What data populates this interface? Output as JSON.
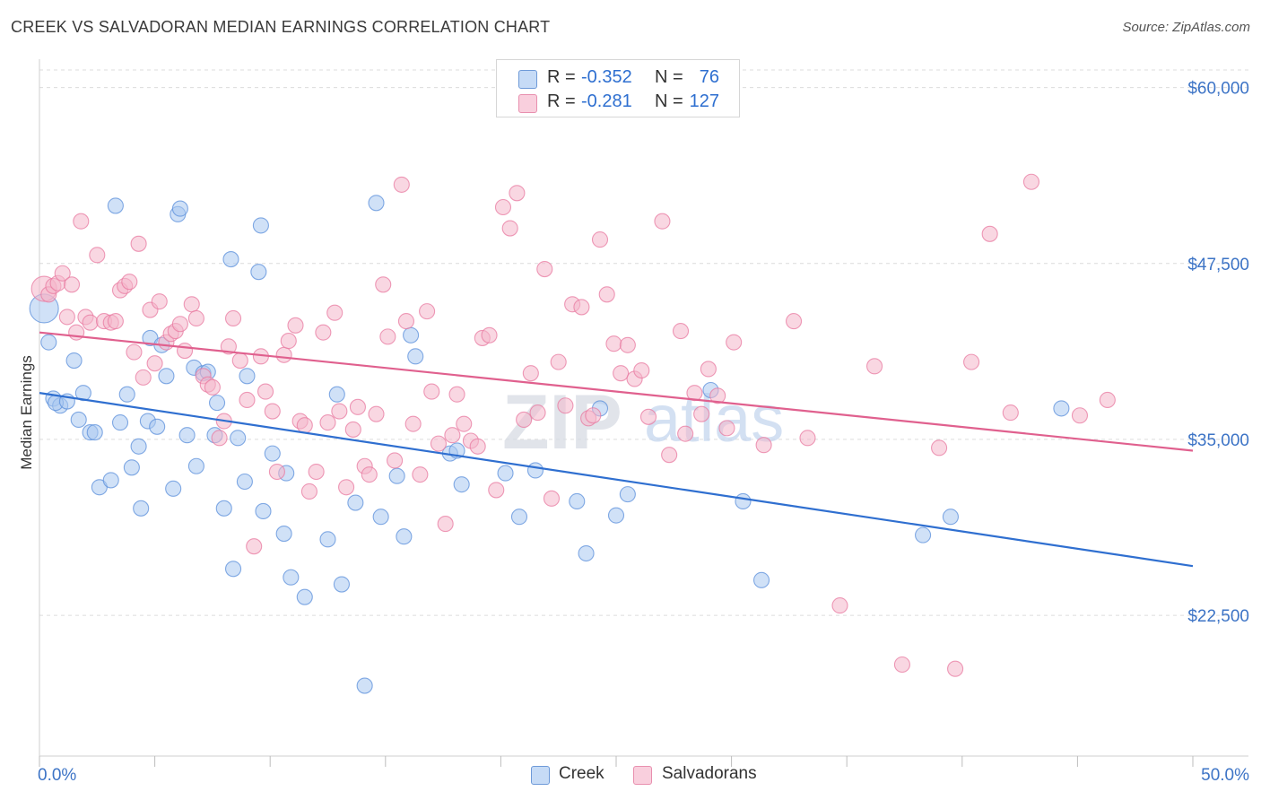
{
  "header": {
    "title": "CREEK VS SALVADORAN MEDIAN EARNINGS CORRELATION CHART",
    "source": "Source: ZipAtlas.com"
  },
  "legend_top": {
    "rows": [
      {
        "r_label": "R =",
        "r_value": "-0.352",
        "n_label": "N =",
        "n_value": "76",
        "color": "#a9c8f0"
      },
      {
        "r_label": "R =",
        "r_value": "-0.281",
        "n_label": "N =",
        "n_value": "127",
        "color": "#f4b6cb"
      }
    ]
  },
  "legend_bottom": [
    {
      "label": "Creek",
      "color": "#a9c8f0"
    },
    {
      "label": "Salvadorans",
      "color": "#f4b6cb"
    }
  ],
  "watermark": {
    "zip": "ZIP",
    "atlas": "atlas"
  },
  "chart_data": {
    "type": "scatter",
    "title": "CREEK VS SALVADORAN MEDIAN EARNINGS CORRELATION CHART",
    "ylabel": "Median Earnings",
    "xlim": [
      0,
      50
    ],
    "ylim": [
      12500,
      61250
    ],
    "x_tick_labels": [
      "0.0%",
      "50.0%"
    ],
    "y_ticks": [
      22500,
      35000,
      47500,
      60000
    ],
    "y_tick_labels": [
      "$22,500",
      "$35,000",
      "$47,500",
      "$60,000"
    ],
    "grid": true,
    "series": [
      {
        "name": "Creek",
        "color": "#5b8fdb",
        "fill": "#a9c8f0",
        "trend": {
          "x": [
            0,
            50
          ],
          "y": [
            38300,
            26000
          ]
        },
        "points": [
          [
            0.2,
            44300
          ],
          [
            0.4,
            41900
          ],
          [
            0.6,
            37900
          ],
          [
            0.9,
            37400
          ],
          [
            0.7,
            37600
          ],
          [
            1.2,
            37700
          ],
          [
            1.5,
            40600
          ],
          [
            1.7,
            36400
          ],
          [
            1.9,
            38300
          ],
          [
            2.2,
            35500
          ],
          [
            2.4,
            35500
          ],
          [
            2.6,
            31600
          ],
          [
            3.1,
            32100
          ],
          [
            3.3,
            51600
          ],
          [
            3.5,
            36200
          ],
          [
            3.8,
            38200
          ],
          [
            4.0,
            33000
          ],
          [
            4.3,
            34500
          ],
          [
            4.4,
            30100
          ],
          [
            4.7,
            36300
          ],
          [
            4.8,
            42200
          ],
          [
            5.1,
            35900
          ],
          [
            5.3,
            41700
          ],
          [
            5.5,
            39500
          ],
          [
            5.8,
            31500
          ],
          [
            6.0,
            51000
          ],
          [
            6.1,
            51400
          ],
          [
            6.4,
            35300
          ],
          [
            6.7,
            40100
          ],
          [
            6.8,
            33100
          ],
          [
            7.1,
            39700
          ],
          [
            7.3,
            39800
          ],
          [
            7.6,
            35300
          ],
          [
            7.7,
            37600
          ],
          [
            8.0,
            30100
          ],
          [
            8.3,
            47800
          ],
          [
            8.4,
            25800
          ],
          [
            8.6,
            35100
          ],
          [
            8.9,
            32000
          ],
          [
            9.0,
            39500
          ],
          [
            9.5,
            46900
          ],
          [
            9.6,
            50200
          ],
          [
            10.1,
            34000
          ],
          [
            10.6,
            28300
          ],
          [
            10.7,
            32600
          ],
          [
            10.9,
            25200
          ],
          [
            11.5,
            23800
          ],
          [
            12.5,
            27900
          ],
          [
            12.9,
            38200
          ],
          [
            13.1,
            24700
          ],
          [
            13.7,
            30500
          ],
          [
            14.1,
            17500
          ],
          [
            14.6,
            51800
          ],
          [
            14.8,
            29500
          ],
          [
            15.5,
            32400
          ],
          [
            15.8,
            28100
          ],
          [
            16.1,
            42400
          ],
          [
            16.3,
            40900
          ],
          [
            17.8,
            34000
          ],
          [
            18.1,
            34200
          ],
          [
            18.3,
            31800
          ],
          [
            20.2,
            32600
          ],
          [
            20.8,
            29500
          ],
          [
            21.5,
            32800
          ],
          [
            23.3,
            30600
          ],
          [
            23.7,
            26900
          ],
          [
            24.3,
            37200
          ],
          [
            25.0,
            29600
          ],
          [
            25.5,
            31100
          ],
          [
            29.1,
            38500
          ],
          [
            30.5,
            30600
          ],
          [
            31.3,
            25000
          ],
          [
            38.3,
            28200
          ],
          [
            39.5,
            29500
          ],
          [
            44.3,
            37200
          ],
          [
            9.7,
            29900
          ]
        ]
      },
      {
        "name": "Salvadorans",
        "color": "#e87aa0",
        "fill": "#f4b6cb",
        "trend": {
          "x": [
            0,
            50
          ],
          "y": [
            42600,
            34200
          ]
        },
        "points": [
          [
            0.2,
            45700
          ],
          [
            0.4,
            45300
          ],
          [
            0.6,
            45900
          ],
          [
            0.8,
            46100
          ],
          [
            1.0,
            46800
          ],
          [
            1.2,
            43700
          ],
          [
            1.4,
            46000
          ],
          [
            1.6,
            42600
          ],
          [
            1.8,
            50500
          ],
          [
            2.0,
            43700
          ],
          [
            2.2,
            43300
          ],
          [
            2.5,
            48100
          ],
          [
            2.8,
            43400
          ],
          [
            3.1,
            43300
          ],
          [
            3.3,
            43400
          ],
          [
            3.5,
            45600
          ],
          [
            3.7,
            45900
          ],
          [
            3.9,
            46200
          ],
          [
            4.1,
            41200
          ],
          [
            4.3,
            48900
          ],
          [
            4.5,
            39400
          ],
          [
            4.8,
            44200
          ],
          [
            5.0,
            40400
          ],
          [
            5.2,
            44800
          ],
          [
            5.5,
            41900
          ],
          [
            5.7,
            42500
          ],
          [
            5.9,
            42700
          ],
          [
            6.1,
            43200
          ],
          [
            6.3,
            41300
          ],
          [
            6.6,
            44600
          ],
          [
            6.8,
            43600
          ],
          [
            7.1,
            39500
          ],
          [
            7.3,
            38900
          ],
          [
            7.5,
            38700
          ],
          [
            7.8,
            35100
          ],
          [
            8.0,
            36300
          ],
          [
            8.2,
            41600
          ],
          [
            8.4,
            43600
          ],
          [
            8.7,
            40600
          ],
          [
            9.0,
            37800
          ],
          [
            9.3,
            27400
          ],
          [
            9.6,
            40900
          ],
          [
            9.8,
            38400
          ],
          [
            10.1,
            37000
          ],
          [
            10.3,
            32700
          ],
          [
            10.6,
            41000
          ],
          [
            10.8,
            42000
          ],
          [
            11.1,
            43100
          ],
          [
            11.3,
            36300
          ],
          [
            11.5,
            36000
          ],
          [
            11.7,
            31300
          ],
          [
            12.0,
            32700
          ],
          [
            12.3,
            42600
          ],
          [
            12.5,
            36200
          ],
          [
            12.8,
            44000
          ],
          [
            13.0,
            37000
          ],
          [
            13.3,
            31600
          ],
          [
            13.6,
            35700
          ],
          [
            13.8,
            37300
          ],
          [
            14.1,
            33100
          ],
          [
            14.3,
            32500
          ],
          [
            14.6,
            36800
          ],
          [
            14.9,
            46000
          ],
          [
            15.1,
            42300
          ],
          [
            15.4,
            33500
          ],
          [
            15.7,
            53100
          ],
          [
            15.9,
            43400
          ],
          [
            16.2,
            36100
          ],
          [
            16.5,
            32500
          ],
          [
            16.8,
            44100
          ],
          [
            17.0,
            38400
          ],
          [
            17.3,
            34700
          ],
          [
            17.6,
            29000
          ],
          [
            17.9,
            35300
          ],
          [
            18.1,
            38200
          ],
          [
            18.4,
            36100
          ],
          [
            18.7,
            34900
          ],
          [
            19.0,
            34500
          ],
          [
            19.2,
            42200
          ],
          [
            19.5,
            42400
          ],
          [
            19.8,
            31400
          ],
          [
            20.1,
            51500
          ],
          [
            20.4,
            50000
          ],
          [
            20.7,
            52500
          ],
          [
            21.0,
            36400
          ],
          [
            21.3,
            39700
          ],
          [
            21.6,
            36900
          ],
          [
            21.9,
            47100
          ],
          [
            22.2,
            30800
          ],
          [
            22.5,
            40500
          ],
          [
            22.8,
            37400
          ],
          [
            23.1,
            44600
          ],
          [
            23.5,
            44400
          ],
          [
            23.8,
            36500
          ],
          [
            24.0,
            36700
          ],
          [
            24.3,
            49200
          ],
          [
            24.6,
            45300
          ],
          [
            24.9,
            41800
          ],
          [
            25.2,
            39700
          ],
          [
            25.5,
            41700
          ],
          [
            25.8,
            39300
          ],
          [
            26.1,
            39900
          ],
          [
            26.4,
            36600
          ],
          [
            27.0,
            50500
          ],
          [
            27.3,
            33900
          ],
          [
            27.8,
            42700
          ],
          [
            28.0,
            35400
          ],
          [
            28.4,
            38300
          ],
          [
            28.7,
            36800
          ],
          [
            29.0,
            40000
          ],
          [
            29.4,
            38100
          ],
          [
            29.8,
            35800
          ],
          [
            30.1,
            41900
          ],
          [
            31.4,
            34600
          ],
          [
            32.7,
            43400
          ],
          [
            33.3,
            35100
          ],
          [
            34.7,
            23200
          ],
          [
            36.2,
            40200
          ],
          [
            37.4,
            19000
          ],
          [
            39.0,
            34400
          ],
          [
            39.7,
            18700
          ],
          [
            40.4,
            40500
          ],
          [
            41.2,
            49600
          ],
          [
            42.1,
            36900
          ],
          [
            43.0,
            53300
          ],
          [
            45.1,
            36700
          ],
          [
            46.3,
            37800
          ]
        ]
      }
    ]
  }
}
